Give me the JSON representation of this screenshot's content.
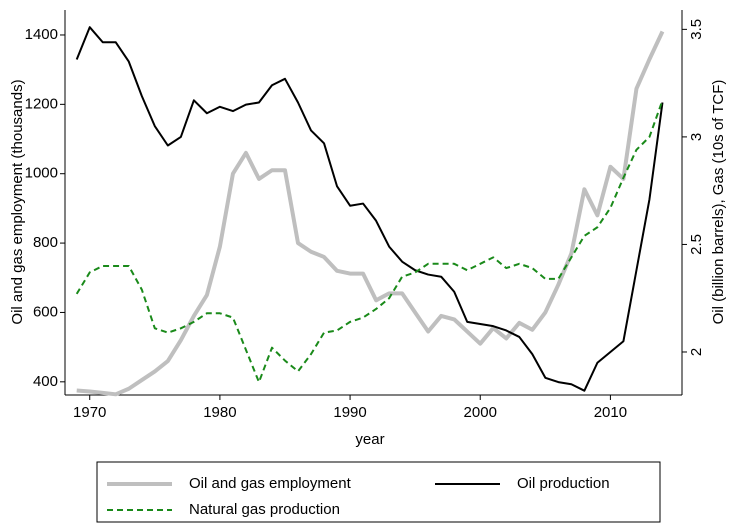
{
  "chart_data": {
    "type": "line",
    "xlabel": "year",
    "ylabel": "Oil and gas employment (thousands)",
    "y2label": "Oil (billion barrels), Gas (10s of TCF)",
    "x": [
      1969,
      1970,
      1971,
      1972,
      1973,
      1974,
      1975,
      1976,
      1977,
      1978,
      1979,
      1980,
      1981,
      1982,
      1983,
      1984,
      1985,
      1986,
      1987,
      1988,
      1989,
      1990,
      1991,
      1992,
      1993,
      1994,
      1995,
      1996,
      1997,
      1998,
      1999,
      2000,
      2001,
      2002,
      2003,
      2004,
      2005,
      2006,
      2007,
      2008,
      2009,
      2010,
      2011,
      2012,
      2013,
      2014
    ],
    "series": [
      {
        "name": "Oil and gas employment",
        "color": "#bfbfbf",
        "style": "solid",
        "width": 4,
        "axis": "y",
        "values": [
          375,
          372,
          368,
          364,
          380,
          405,
          430,
          460,
          520,
          590,
          650,
          790,
          1000,
          1060,
          985,
          1010,
          1010,
          800,
          775,
          760,
          720,
          712,
          712,
          635,
          655,
          655,
          600,
          545,
          590,
          580,
          545,
          510,
          555,
          525,
          570,
          550,
          600,
          680,
          770,
          955,
          880,
          1020,
          985,
          1245,
          1330,
          1410
        ]
      },
      {
        "name": "Oil production",
        "color": "#000000",
        "style": "solid",
        "width": 2,
        "axis": "y2",
        "values": [
          3.36,
          3.51,
          3.44,
          3.44,
          3.35,
          3.19,
          3.05,
          2.96,
          3.0,
          3.17,
          3.11,
          3.14,
          3.12,
          3.15,
          3.16,
          3.24,
          3.27,
          3.16,
          3.03,
          2.97,
          2.77,
          2.68,
          2.69,
          2.61,
          2.49,
          2.42,
          2.38,
          2.36,
          2.35,
          2.28,
          2.14,
          2.13,
          2.12,
          2.1,
          2.07,
          1.99,
          1.88,
          1.86,
          1.85,
          1.82,
          1.95,
          2.0,
          2.05,
          2.38,
          2.71,
          3.16
        ]
      },
      {
        "name": "Natural gas production",
        "color": "#1a8a1a",
        "style": "dashed",
        "width": 2,
        "axis": "y2",
        "values": [
          2.27,
          2.37,
          2.4,
          2.4,
          2.4,
          2.29,
          2.11,
          2.09,
          2.11,
          2.14,
          2.18,
          2.18,
          2.16,
          2.01,
          1.86,
          2.02,
          1.96,
          1.91,
          1.99,
          2.09,
          2.1,
          2.14,
          2.16,
          2.2,
          2.25,
          2.35,
          2.37,
          2.41,
          2.41,
          2.41,
          2.38,
          2.41,
          2.44,
          2.39,
          2.41,
          2.39,
          2.34,
          2.34,
          2.44,
          2.54,
          2.58,
          2.67,
          2.81,
          2.94,
          3.0,
          3.17
        ]
      }
    ],
    "xlim": [
      1968.1,
      2015.5
    ],
    "xticks": [
      1970,
      1980,
      1990,
      2000,
      2010
    ],
    "ylim": [
      362,
      1472
    ],
    "yticks": [
      400,
      600,
      800,
      1000,
      1200,
      1400
    ],
    "y2lim": [
      1.8,
      3.59
    ],
    "y2ticks": [
      2,
      2.5,
      3,
      3.5
    ],
    "grid": false,
    "legend": "bottom"
  }
}
